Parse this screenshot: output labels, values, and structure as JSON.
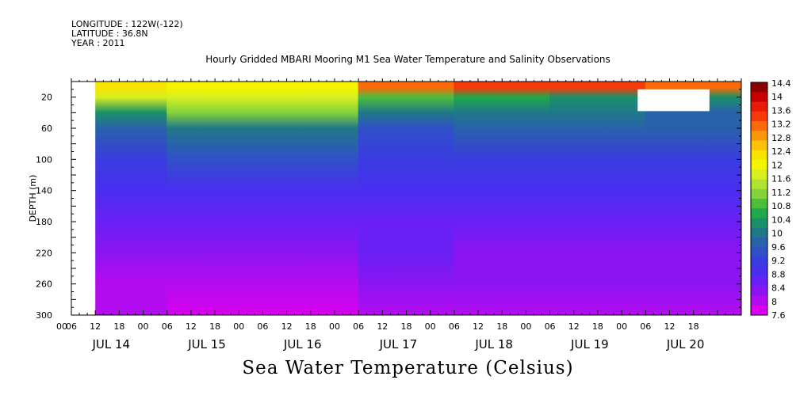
{
  "header": {
    "longitude": "LONGITUDE : 122W(-122)",
    "latitude": "LATITUDE : 36.8N",
    "year": "YEAR : 2011"
  },
  "chart_data": {
    "type": "heatmap",
    "title": "Hourly Gridded MBARI Mooring M1 Sea Water Temperature and Salinity Observations",
    "ylabel": "DEPTH (m)",
    "xlabel": "",
    "bottom_label": "Sea Water Temperature (Celsius)",
    "y_axis": {
      "reversed": true,
      "range": [
        0,
        300
      ],
      "ticks": [
        20,
        60,
        100,
        140,
        180,
        220,
        260,
        300
      ]
    },
    "x_axis": {
      "range_hours": [
        0,
        168
      ],
      "hour_ticks": [
        "00",
        "06",
        "12",
        "18",
        "00",
        "06",
        "12",
        "18",
        "00",
        "06",
        "12",
        "18",
        "00",
        "06",
        "12",
        "18",
        "00",
        "06",
        "12",
        "18",
        "00",
        "06",
        "12",
        "18",
        "00",
        "06",
        "12",
        "18"
      ],
      "day_labels": [
        "JUL 14",
        "JUL 15",
        "JUL 16",
        "JUL 17",
        "JUL 18",
        "JUL 19",
        "JUL 20"
      ]
    },
    "missing_data_regions": [
      {
        "description": "no data",
        "x_hours": [
          0,
          6
        ],
        "depth": [
          0,
          300
        ]
      },
      {
        "description": "no data",
        "x_hours": [
          142,
          160
        ],
        "depth": [
          10,
          38
        ]
      }
    ],
    "colorbar": {
      "labels": [
        "14.4",
        "14",
        "13.6",
        "13.2",
        "12.8",
        "12.4",
        "12",
        "11.6",
        "11.2",
        "10.8",
        "10.4",
        "10",
        "9.6",
        "9.2",
        "8.8",
        "8.4",
        "8",
        "7.6"
      ],
      "colors": [
        "#8b0000",
        "#c40000",
        "#e81a0a",
        "#f53a0a",
        "#f86a0a",
        "#fa960a",
        "#fcc20a",
        "#f8e400",
        "#f4f400",
        "#d8ef20",
        "#b0e232",
        "#84d23c",
        "#4cbe3c",
        "#20a84a",
        "#1a9068",
        "#1f7888",
        "#2862a8",
        "#3050c8",
        "#3a3ce0",
        "#4a2ef0",
        "#6a20f4",
        "#8c14f2",
        "#b40cf0",
        "#d800ee"
      ]
    },
    "day_profiles": [
      {
        "day": "JUL 14",
        "surface_temp": 12.4,
        "thermocline": [
          [
            20,
            11.6
          ],
          [
            40,
            10.4
          ],
          [
            60,
            9.8
          ],
          [
            100,
            9.2
          ],
          [
            140,
            8.8
          ],
          [
            180,
            8.5
          ],
          [
            220,
            8.2
          ],
          [
            260,
            8.0
          ],
          [
            300,
            7.8
          ]
        ]
      },
      {
        "day": "JUL 15",
        "surface_temp": 12.0,
        "thermocline": [
          [
            20,
            11.8
          ],
          [
            40,
            11.2
          ],
          [
            60,
            10.0
          ],
          [
            100,
            9.3
          ],
          [
            140,
            8.8
          ],
          [
            180,
            8.6
          ],
          [
            220,
            8.3
          ],
          [
            260,
            8.0
          ],
          [
            300,
            7.7
          ]
        ]
      },
      {
        "day": "JUL 16",
        "surface_temp": 12.0,
        "thermocline": [
          [
            20,
            11.8
          ],
          [
            40,
            11.2
          ],
          [
            60,
            10.0
          ],
          [
            100,
            9.3
          ],
          [
            140,
            8.8
          ],
          [
            180,
            8.6
          ],
          [
            220,
            8.3
          ],
          [
            260,
            7.9
          ],
          [
            300,
            7.7
          ]
        ]
      },
      {
        "day": "JUL 17",
        "surface_temp": 13.2,
        "thermocline": [
          [
            20,
            10.8
          ],
          [
            40,
            10.0
          ],
          [
            60,
            9.5
          ],
          [
            100,
            9.2
          ],
          [
            140,
            8.8
          ],
          [
            180,
            8.6
          ],
          [
            220,
            8.4
          ],
          [
            260,
            8.2
          ],
          [
            300,
            8.0
          ]
        ]
      },
      {
        "day": "JUL 18",
        "surface_temp": 13.6,
        "thermocline": [
          [
            20,
            10.6
          ],
          [
            40,
            10.0
          ],
          [
            60,
            9.6
          ],
          [
            100,
            9.1
          ],
          [
            140,
            8.8
          ],
          [
            180,
            8.5
          ],
          [
            220,
            8.3
          ],
          [
            260,
            8.1
          ],
          [
            300,
            7.9
          ]
        ]
      },
      {
        "day": "JUL 19",
        "surface_temp": 13.6,
        "thermocline": [
          [
            20,
            10.4
          ],
          [
            40,
            10.0
          ],
          [
            60,
            9.6
          ],
          [
            100,
            9.2
          ],
          [
            140,
            8.8
          ],
          [
            180,
            8.5
          ],
          [
            220,
            8.3
          ],
          [
            260,
            8.1
          ],
          [
            300,
            7.9
          ]
        ]
      },
      {
        "day": "JUL 20",
        "surface_temp": 13.2,
        "thermocline": [
          [
            20,
            10.4
          ],
          [
            40,
            9.8
          ],
          [
            60,
            9.6
          ],
          [
            100,
            9.2
          ],
          [
            140,
            8.8
          ],
          [
            180,
            8.5
          ],
          [
            220,
            8.3
          ],
          [
            260,
            8.1
          ],
          [
            300,
            7.9
          ]
        ]
      }
    ]
  }
}
